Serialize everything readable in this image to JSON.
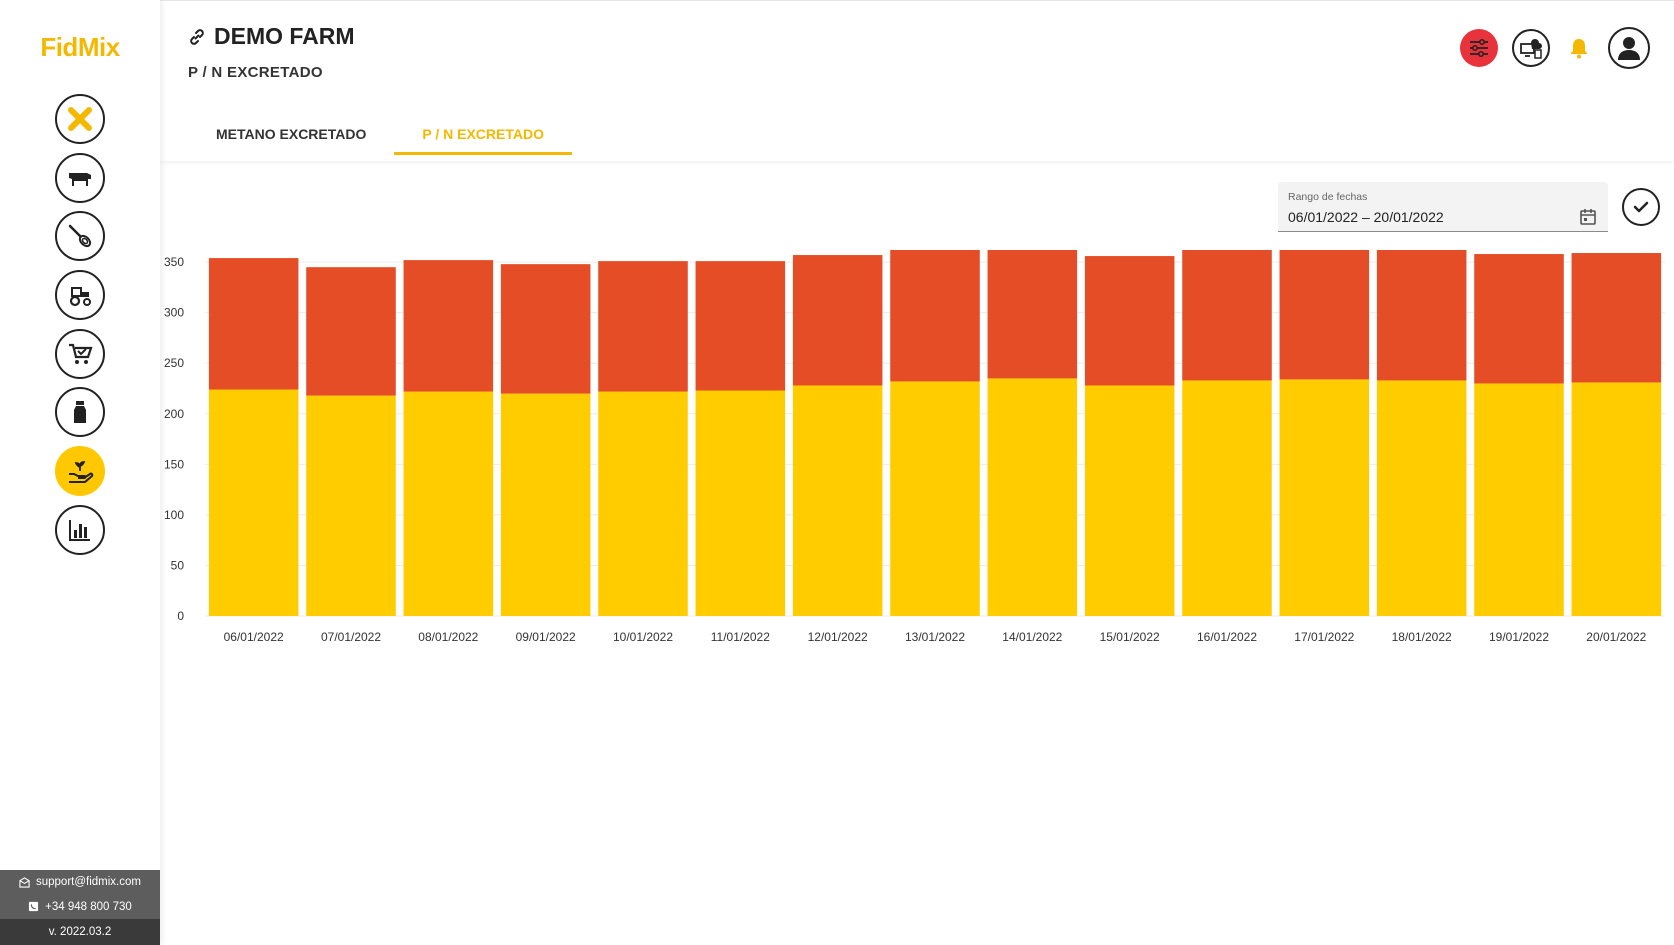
{
  "app": {
    "logo": "FidMix"
  },
  "header": {
    "farm_name": "DEMO FARM",
    "subtitle": "P / N EXCRETADO",
    "tabs": [
      {
        "label": "METANO EXCRETADO",
        "active": false
      },
      {
        "label": "P / N EXCRETADO",
        "active": true
      }
    ]
  },
  "sidebar": {
    "items": [
      {
        "name": "fidmix-x-icon"
      },
      {
        "name": "cow-icon"
      },
      {
        "name": "whisk-icon"
      },
      {
        "name": "tractor-icon"
      },
      {
        "name": "cart-check-icon"
      },
      {
        "name": "milk-bottle-icon"
      },
      {
        "name": "hand-plant-icon",
        "active": true
      },
      {
        "name": "bar-chart-icon"
      }
    ]
  },
  "support": {
    "email": "support@fidmix.com",
    "phone": "+34 948 800 730",
    "version": "v. 2022.03.2"
  },
  "date_filter": {
    "label": "Rango de fechas",
    "value": "06/01/2022 – 20/01/2022"
  },
  "colors": {
    "accent": "#f5b800",
    "series_bottom": "#ffcc00",
    "series_top": "#e44d26",
    "alert": "#e8323c"
  },
  "chart_data": {
    "type": "bar",
    "stacked": true,
    "categories": [
      "06/01/2022",
      "07/01/2022",
      "08/01/2022",
      "09/01/2022",
      "10/01/2022",
      "11/01/2022",
      "12/01/2022",
      "13/01/2022",
      "14/01/2022",
      "15/01/2022",
      "16/01/2022",
      "17/01/2022",
      "18/01/2022",
      "19/01/2022",
      "20/01/2022"
    ],
    "series": [
      {
        "name": "N",
        "color": "#ffcc00",
        "values": [
          224,
          218,
          222,
          220,
          222,
          223,
          228,
          232,
          235,
          228,
          233,
          234,
          233,
          230,
          231
        ]
      },
      {
        "name": "P",
        "color": "#e44d26",
        "values": [
          130,
          127,
          130,
          128,
          129,
          128,
          129,
          131,
          132,
          128,
          130,
          132,
          129,
          128,
          128
        ]
      }
    ],
    "yticks": [
      0,
      50,
      100,
      150,
      200,
      250,
      300,
      350
    ],
    "ylim": [
      0,
      362
    ],
    "grid": true,
    "legend": "none"
  }
}
